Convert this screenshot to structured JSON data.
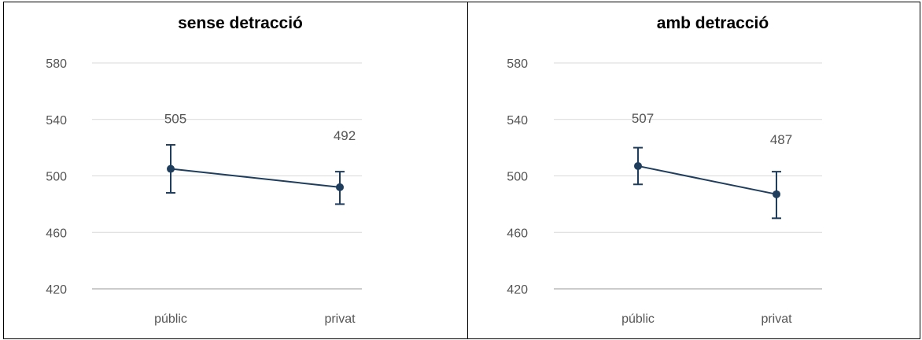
{
  "chart_data": [
    {
      "type": "line",
      "title": "sense detracció",
      "categories": [
        "públic",
        "privat"
      ],
      "values": [
        505,
        492
      ],
      "error_bars": [
        {
          "low": 488,
          "high": 522
        },
        {
          "low": 480,
          "high": 503
        }
      ],
      "data_labels": [
        "505",
        "492"
      ],
      "ylim": [
        420,
        580
      ],
      "yticks": [
        580,
        540,
        500,
        460,
        420
      ],
      "grid": true,
      "series_color": "#1f3d5c"
    },
    {
      "type": "line",
      "title": "amb detracció",
      "categories": [
        "públic",
        "privat"
      ],
      "values": [
        507,
        487
      ],
      "error_bars": [
        {
          "low": 494,
          "high": 520
        },
        {
          "low": 470,
          "high": 503
        }
      ],
      "data_labels": [
        "507",
        "487"
      ],
      "ylim": [
        420,
        580
      ],
      "yticks": [
        580,
        540,
        500,
        460,
        420
      ],
      "grid": true,
      "series_color": "#1f3d5c"
    }
  ]
}
